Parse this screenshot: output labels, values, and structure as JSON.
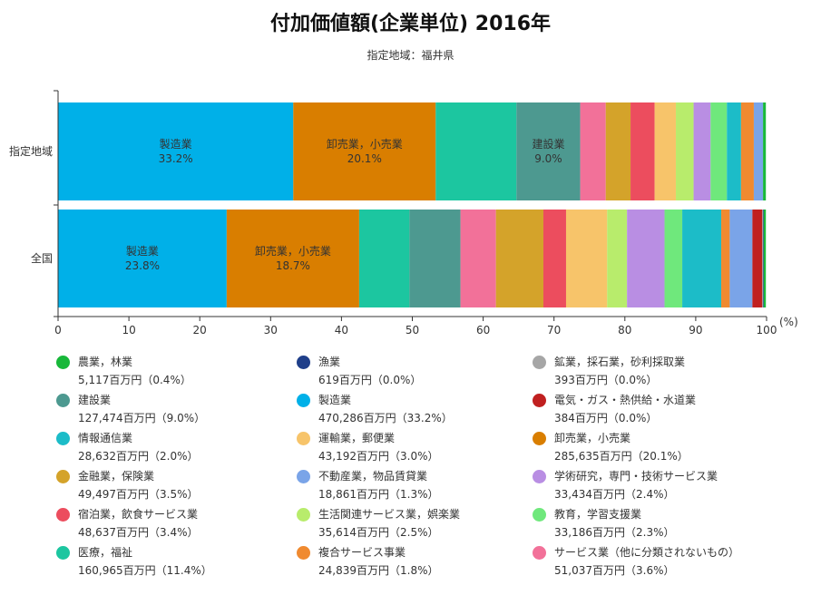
{
  "header": {
    "title": "付加価値額(企業単位) 2016年",
    "subtitle": "指定地域：福井県"
  },
  "chart_data": {
    "type": "bar",
    "orientation": "horizontal",
    "stacked": true,
    "title": "付加価値額(企業単位) 2016年",
    "subtitle": "指定地域：福井県",
    "xlabel": "(%)",
    "xlim": [
      0,
      100
    ],
    "x_ticks": [
      "0",
      "10",
      "20",
      "30",
      "40",
      "50",
      "60",
      "70",
      "80",
      "90",
      "100"
    ],
    "categories": [
      "指定地域",
      "全国"
    ],
    "series": [
      {
        "name": "製造業",
        "color": "#00b0e8",
        "values": [
          33.2,
          23.8
        ],
        "labels": [
          "33.2%",
          "23.8%"
        ]
      },
      {
        "name": "卸売業，小売業",
        "color": "#d97e00",
        "values": [
          20.1,
          18.7
        ],
        "labels": [
          "20.1%",
          "18.7%"
        ]
      },
      {
        "name": "医療，福祉",
        "color": "#1cc6a0",
        "values": [
          11.4,
          7.1
        ]
      },
      {
        "name": "建設業",
        "color": "#4d9990",
        "values": [
          9.0,
          7.2
        ],
        "labels": [
          "9.0%",
          null
        ]
      },
      {
        "name": "サービス業（他に分類されないもの）",
        "color": "#f27199",
        "values": [
          3.6,
          5.0
        ]
      },
      {
        "name": "金融業，保険業",
        "color": "#d4a32a",
        "values": [
          3.5,
          6.7
        ]
      },
      {
        "name": "宿泊業，飲食サービス業",
        "color": "#ec4d5e",
        "values": [
          3.4,
          3.2
        ]
      },
      {
        "name": "運輸業，郵便業",
        "color": "#f7c46a",
        "values": [
          3.0,
          5.8
        ]
      },
      {
        "name": "生活関連サービス業，娯楽業",
        "color": "#b8ec6c",
        "values": [
          2.5,
          2.8
        ]
      },
      {
        "name": "学術研究，専門・技術サービス業",
        "color": "#b98ee3",
        "values": [
          2.4,
          5.3
        ]
      },
      {
        "name": "教育，学習支援業",
        "color": "#6fe87c",
        "values": [
          2.3,
          2.5
        ]
      },
      {
        "name": "情報通信業",
        "color": "#1cbcc8",
        "values": [
          2.0,
          5.5
        ]
      },
      {
        "name": "複合サービス事業",
        "color": "#f08a30",
        "values": [
          1.8,
          1.2
        ]
      },
      {
        "name": "不動産業，物品賃貸業",
        "color": "#7aa4e8",
        "values": [
          1.3,
          3.2
        ]
      },
      {
        "name": "電気・ガス・熱供給・水道業",
        "color": "#c02020",
        "values": [
          0.0,
          1.4
        ]
      },
      {
        "name": "鉱業，採石業，砂利採取業",
        "color": "#a6a6a6",
        "values": [
          0.0,
          0.1
        ]
      },
      {
        "name": "漁業",
        "color": "#1f3f8a",
        "values": [
          0.0,
          0.1
        ]
      },
      {
        "name": "農業，林業",
        "color": "#18b83a",
        "values": [
          0.4,
          0.3
        ]
      }
    ],
    "grid": false,
    "legend": "bottom"
  },
  "legend": [
    {
      "name": "農業，林業",
      "value": "5,117百万円（0.4%）",
      "color": "#18b83a"
    },
    {
      "name": "漁業",
      "value": "619百万円（0.0%）",
      "color": "#1f3f8a"
    },
    {
      "name": "鉱業，採石業，砂利採取業",
      "value": "393百万円（0.0%）",
      "color": "#a6a6a6"
    },
    {
      "name": "建設業",
      "value": "127,474百万円（9.0%）",
      "color": "#4d9990"
    },
    {
      "name": "製造業",
      "value": "470,286百万円（33.2%）",
      "color": "#00b0e8"
    },
    {
      "name": "電気・ガス・熱供給・水道業",
      "value": "384百万円（0.0%）",
      "color": "#c02020"
    },
    {
      "name": "情報通信業",
      "value": "28,632百万円（2.0%）",
      "color": "#1cbcc8"
    },
    {
      "name": "運輸業，郵便業",
      "value": "43,192百万円（3.0%）",
      "color": "#f7c46a"
    },
    {
      "name": "卸売業，小売業",
      "value": "285,635百万円（20.1%）",
      "color": "#d97e00"
    },
    {
      "name": "金融業，保険業",
      "value": "49,497百万円（3.5%）",
      "color": "#d4a32a"
    },
    {
      "name": "不動産業，物品賃貸業",
      "value": "18,861百万円（1.3%）",
      "color": "#7aa4e8"
    },
    {
      "name": "学術研究，専門・技術サービス業",
      "value": "33,434百万円（2.4%）",
      "color": "#b98ee3"
    },
    {
      "name": "宿泊業，飲食サービス業",
      "value": "48,637百万円（3.4%）",
      "color": "#ec4d5e"
    },
    {
      "name": "生活関連サービス業，娯楽業",
      "value": "35,614百万円（2.5%）",
      "color": "#b8ec6c"
    },
    {
      "name": "教育，学習支援業",
      "value": "33,186百万円（2.3%）",
      "color": "#6fe87c"
    },
    {
      "name": "医療，福祉",
      "value": "160,965百万円（11.4%）",
      "color": "#1cc6a0"
    },
    {
      "name": "複合サービス事業",
      "value": "24,839百万円（1.8%）",
      "color": "#f08a30"
    },
    {
      "name": "サービス業（他に分類されないもの）",
      "value": "51,037百万円（3.6%）",
      "color": "#f27199"
    }
  ]
}
